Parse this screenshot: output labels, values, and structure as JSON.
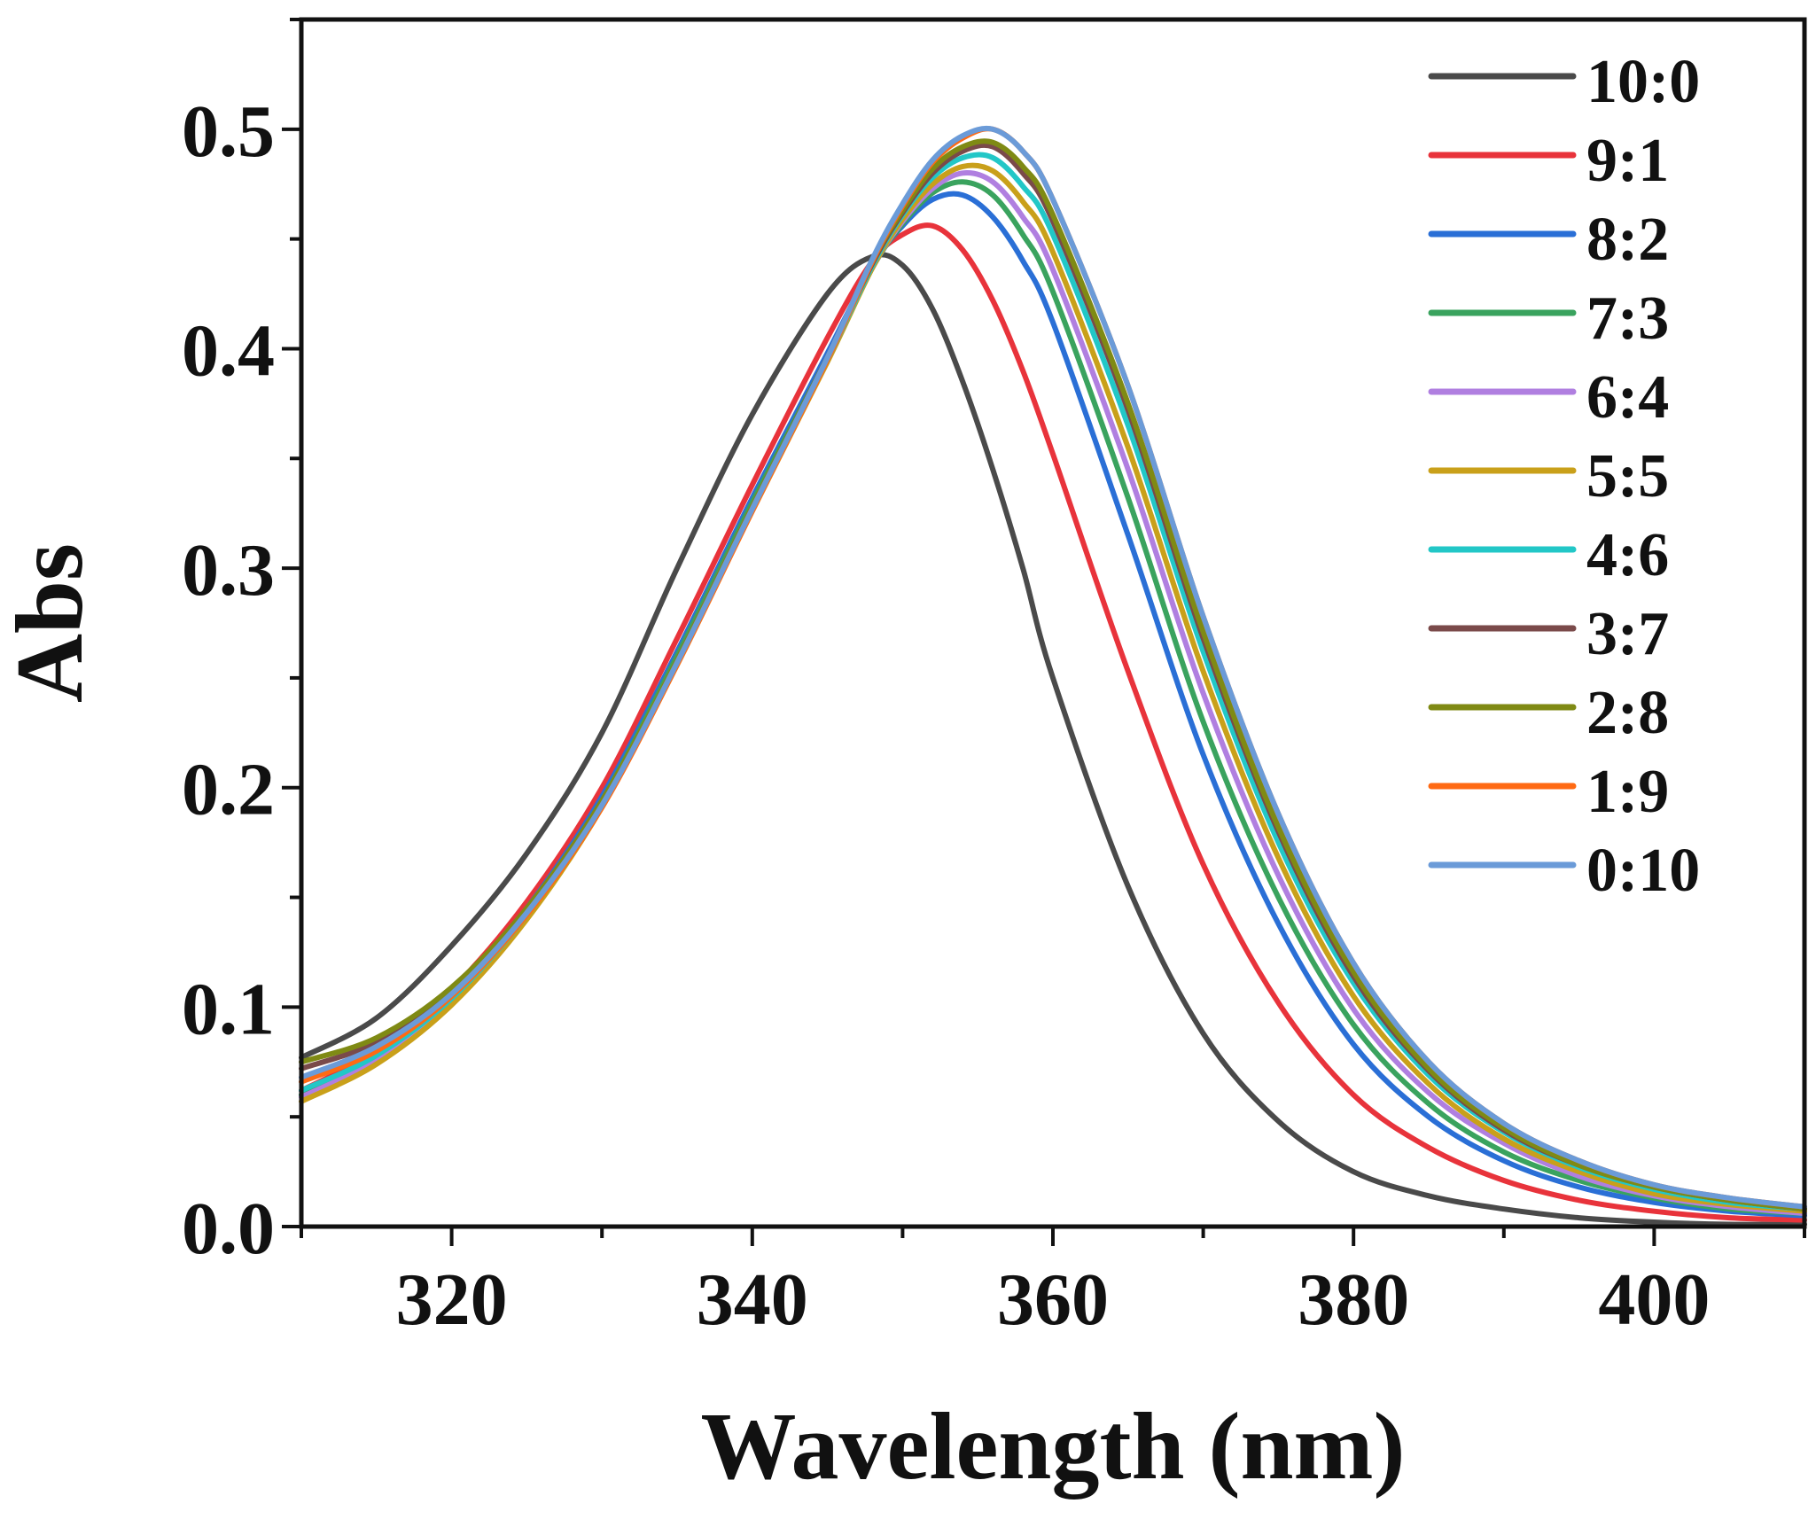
{
  "chart_data": {
    "type": "line",
    "title": "",
    "xlabel": "Wavelength (nm)",
    "ylabel": "Abs",
    "xlim": [
      310,
      410
    ],
    "ylim": [
      0.0,
      0.55
    ],
    "x_ticks": [
      320,
      340,
      360,
      380,
      400
    ],
    "y_ticks": [
      0.0,
      0.1,
      0.2,
      0.3,
      0.4,
      0.5
    ],
    "x_tick_labels": [
      "320",
      "340",
      "360",
      "380",
      "400"
    ],
    "y_tick_labels": [
      "0.0",
      "0.1",
      "0.2",
      "0.3",
      "0.4",
      "0.5"
    ],
    "grid": false,
    "legend_position": "top-right",
    "x": [
      310,
      315,
      320,
      325,
      330,
      335,
      340,
      345,
      348,
      350,
      352,
      354,
      356,
      358,
      360,
      365,
      370,
      375,
      380,
      385,
      390,
      395,
      400,
      405,
      410
    ],
    "series": [
      {
        "name": "10:0",
        "color": "#4a4a4a",
        "values": [
          0.077,
          0.095,
          0.128,
          0.17,
          0.225,
          0.3,
          0.37,
          0.425,
          0.442,
          0.438,
          0.418,
          0.385,
          0.345,
          0.3,
          0.25,
          0.155,
          0.088,
          0.048,
          0.025,
          0.014,
          0.008,
          0.004,
          0.002,
          0.001,
          0.001
        ]
      },
      {
        "name": "9:1",
        "color": "#e8333b",
        "values": [
          0.062,
          0.08,
          0.108,
          0.148,
          0.2,
          0.268,
          0.338,
          0.405,
          0.44,
          0.452,
          0.456,
          0.445,
          0.422,
          0.39,
          0.352,
          0.253,
          0.165,
          0.102,
          0.06,
          0.036,
          0.021,
          0.012,
          0.007,
          0.004,
          0.003
        ]
      },
      {
        "name": "8:2",
        "color": "#2a6fd6",
        "values": [
          0.06,
          0.078,
          0.105,
          0.145,
          0.196,
          0.262,
          0.332,
          0.398,
          0.438,
          0.456,
          0.468,
          0.47,
          0.46,
          0.44,
          0.412,
          0.315,
          0.215,
          0.138,
          0.083,
          0.05,
          0.03,
          0.018,
          0.011,
          0.007,
          0.005
        ]
      },
      {
        "name": "7:3",
        "color": "#3aa35e",
        "values": [
          0.06,
          0.077,
          0.104,
          0.143,
          0.194,
          0.26,
          0.33,
          0.396,
          0.437,
          0.457,
          0.471,
          0.476,
          0.47,
          0.452,
          0.426,
          0.332,
          0.23,
          0.15,
          0.092,
          0.056,
          0.034,
          0.021,
          0.013,
          0.008,
          0.006
        ]
      },
      {
        "name": "6:4",
        "color": "#b07fe0",
        "values": [
          0.059,
          0.076,
          0.103,
          0.142,
          0.193,
          0.258,
          0.328,
          0.395,
          0.437,
          0.458,
          0.473,
          0.48,
          0.476,
          0.46,
          0.436,
          0.345,
          0.243,
          0.16,
          0.099,
          0.061,
          0.038,
          0.023,
          0.014,
          0.009,
          0.006
        ]
      },
      {
        "name": "5:5",
        "color": "#c9a01a",
        "values": [
          0.057,
          0.074,
          0.101,
          0.14,
          0.191,
          0.256,
          0.326,
          0.394,
          0.437,
          0.459,
          0.475,
          0.483,
          0.481,
          0.467,
          0.444,
          0.355,
          0.253,
          0.168,
          0.105,
          0.065,
          0.04,
          0.025,
          0.015,
          0.01,
          0.007
        ]
      },
      {
        "name": "4:6",
        "color": "#22c7c7",
        "values": [
          0.062,
          0.078,
          0.104,
          0.142,
          0.192,
          0.257,
          0.327,
          0.395,
          0.438,
          0.461,
          0.478,
          0.487,
          0.487,
          0.474,
          0.452,
          0.365,
          0.262,
          0.175,
          0.111,
          0.069,
          0.043,
          0.027,
          0.017,
          0.011,
          0.008
        ]
      },
      {
        "name": "3:7",
        "color": "#7a4a4a",
        "values": [
          0.072,
          0.084,
          0.108,
          0.144,
          0.193,
          0.258,
          0.328,
          0.396,
          0.439,
          0.462,
          0.48,
          0.49,
          0.492,
          0.48,
          0.458,
          0.372,
          0.268,
          0.18,
          0.114,
          0.071,
          0.044,
          0.028,
          0.018,
          0.012,
          0.008
        ]
      },
      {
        "name": "2:8",
        "color": "#7f8a14",
        "values": [
          0.075,
          0.086,
          0.109,
          0.145,
          0.194,
          0.258,
          0.328,
          0.396,
          0.44,
          0.463,
          0.482,
          0.492,
          0.494,
          0.483,
          0.461,
          0.375,
          0.271,
          0.182,
          0.116,
          0.072,
          0.045,
          0.028,
          0.018,
          0.012,
          0.008
        ]
      },
      {
        "name": "1:9",
        "color": "#ff6a13",
        "values": [
          0.066,
          0.08,
          0.105,
          0.142,
          0.191,
          0.256,
          0.326,
          0.395,
          0.44,
          0.465,
          0.485,
          0.496,
          0.5,
          0.49,
          0.468,
          0.383,
          0.278,
          0.188,
          0.12,
          0.075,
          0.047,
          0.03,
          0.019,
          0.013,
          0.009
        ]
      },
      {
        "name": "0:10",
        "color": "#6b9bd8",
        "values": [
          0.068,
          0.082,
          0.106,
          0.143,
          0.192,
          0.257,
          0.327,
          0.396,
          0.441,
          0.466,
          0.486,
          0.497,
          0.5,
          0.49,
          0.468,
          0.383,
          0.278,
          0.188,
          0.12,
          0.075,
          0.047,
          0.03,
          0.019,
          0.013,
          0.009
        ]
      }
    ]
  }
}
